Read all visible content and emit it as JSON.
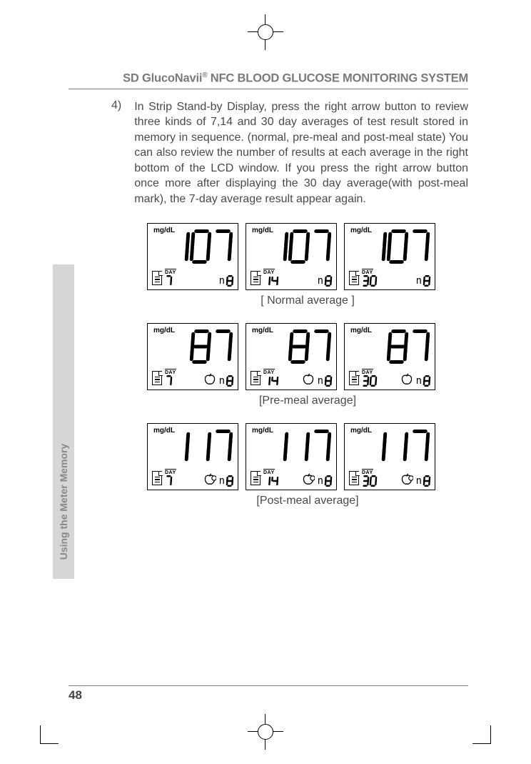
{
  "header": {
    "product": "SD GlucoNavii",
    "reg": "®",
    "suffix": " NFC BLOOD GLUCOSE MONITORING SYSTEM"
  },
  "step": {
    "num": "4)",
    "text": "In Strip Stand-by Display, press the right arrow button to review three kinds of 7,14 and 30 day averages of test result stored in memory in sequence. (normal, pre-meal and post-meal state) You can also review the number of results at each average in the right bottom of the LCD window. If you press the right arrow button once more after displaying the 30 day average(with post-meal mark), the 7-day average result appear again."
  },
  "sections": [
    {
      "caption": "[ Normal average ]",
      "meal": "none",
      "screens": [
        {
          "unit": "mg/dL",
          "value": "107",
          "day": "7",
          "count": "8"
        },
        {
          "unit": "mg/dL",
          "value": "107",
          "day": "14",
          "count": "8"
        },
        {
          "unit": "mg/dL",
          "value": "107",
          "day": "30",
          "count": "8"
        }
      ]
    },
    {
      "caption": "[Pre-meal average]",
      "meal": "pre",
      "screens": [
        {
          "unit": "mg/dL",
          "value": "87",
          "day": "7",
          "count": "8"
        },
        {
          "unit": "mg/dL",
          "value": "87",
          "day": "14",
          "count": "8"
        },
        {
          "unit": "mg/dL",
          "value": "87",
          "day": "30",
          "count": "8"
        }
      ]
    },
    {
      "caption": "[Post-meal average]",
      "meal": "post",
      "screens": [
        {
          "unit": "mg/dL",
          "value": "117",
          "day": "7",
          "count": "8"
        },
        {
          "unit": "mg/dL",
          "value": "117",
          "day": "14",
          "count": "8"
        },
        {
          "unit": "mg/dL",
          "value": "117",
          "day": "30",
          "count": "8"
        }
      ]
    }
  ],
  "sideTab": "Using the Meter Memory",
  "pageNumber": "48",
  "style": {
    "page_bg": "#ffffff",
    "text_color": "#4a4a4a",
    "header_color": "#7a7a7a",
    "lcd_border": "#000000",
    "seg_on": "#000000",
    "seg_width_big": 5,
    "seg_width_small": 2.5,
    "tab_bg": "#d6d6d6",
    "tab_text": "#888888"
  },
  "segmentMap": {
    "0": [
      1,
      1,
      1,
      1,
      1,
      1,
      0
    ],
    "1": [
      0,
      1,
      1,
      0,
      0,
      0,
      0
    ],
    "2": [
      1,
      1,
      0,
      1,
      1,
      0,
      1
    ],
    "3": [
      1,
      1,
      1,
      1,
      0,
      0,
      1
    ],
    "4": [
      0,
      1,
      1,
      0,
      0,
      1,
      1
    ],
    "5": [
      1,
      0,
      1,
      1,
      0,
      1,
      1
    ],
    "6": [
      1,
      0,
      1,
      1,
      1,
      1,
      1
    ],
    "7": [
      1,
      1,
      1,
      0,
      0,
      0,
      0
    ],
    "8": [
      1,
      1,
      1,
      1,
      1,
      1,
      1
    ],
    "9": [
      1,
      1,
      1,
      1,
      0,
      1,
      1
    ]
  }
}
